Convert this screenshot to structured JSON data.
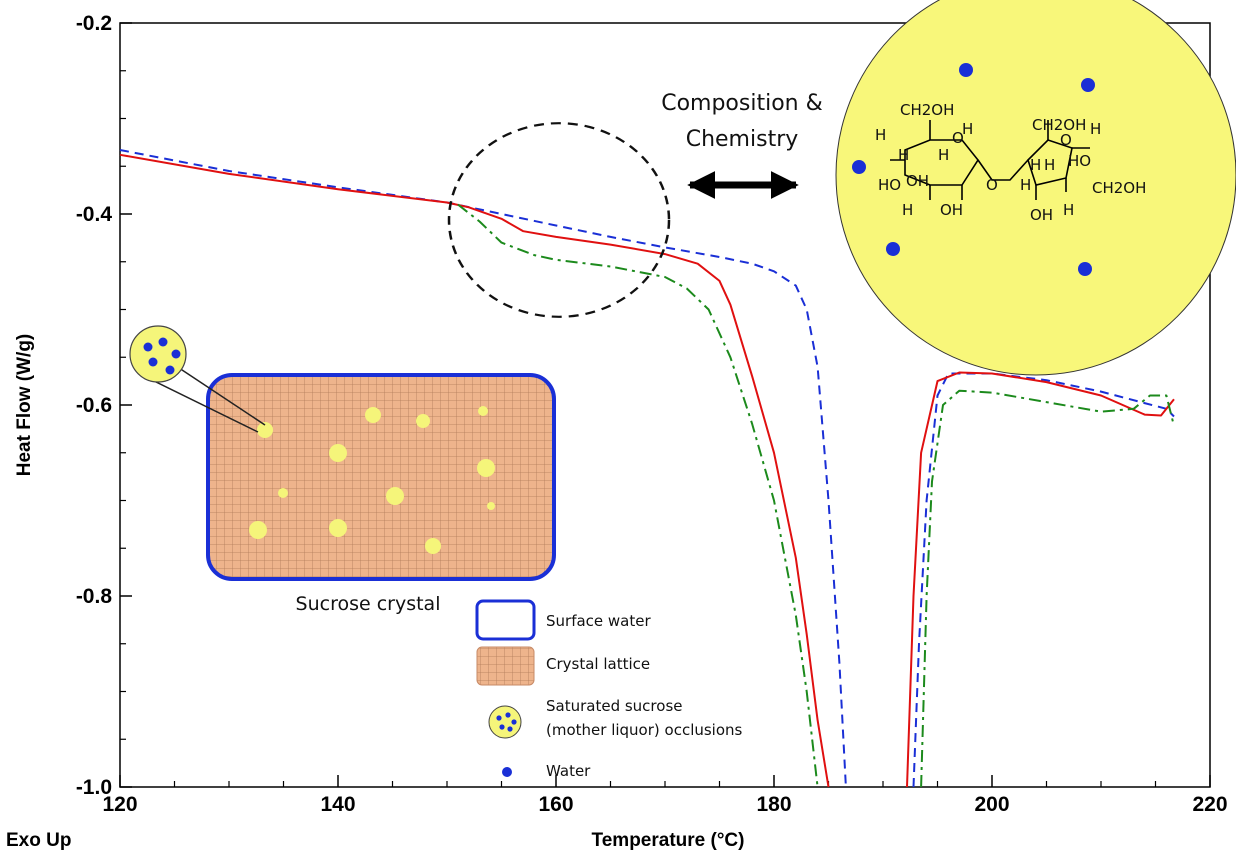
{
  "chart_data": {
    "type": "line",
    "xlabel": "Temperature (°C)",
    "ylabel": "Heat Flow (W/g)",
    "corner_label": "Exo Up",
    "xlim": [
      120,
      220
    ],
    "ylim": [
      -1.0,
      -0.2
    ],
    "xticks": [
      120,
      140,
      160,
      180,
      200,
      220
    ],
    "yticks": [
      -1.0,
      -0.8,
      -0.6,
      -0.4,
      -0.2
    ],
    "xtick_labels": [
      "120",
      "140",
      "160",
      "180",
      "200",
      "220"
    ],
    "ytick_labels": [
      "-1.0",
      "-0.8",
      "-0.6",
      "-0.4",
      "-0.2"
    ],
    "grid": false,
    "series": [
      {
        "color": "#1a2fd6",
        "dash": "dashed",
        "points": [
          [
            120,
            -0.333
          ],
          [
            130,
            -0.355
          ],
          [
            140,
            -0.372
          ],
          [
            150,
            -0.388
          ],
          [
            155,
            -0.4
          ],
          [
            160,
            -0.412
          ],
          [
            165,
            -0.424
          ],
          [
            170,
            -0.435
          ],
          [
            175,
            -0.445
          ],
          [
            178,
            -0.452
          ],
          [
            180,
            -0.46
          ],
          [
            182,
            -0.475
          ],
          [
            183,
            -0.5
          ],
          [
            184,
            -0.56
          ],
          [
            185,
            -0.7
          ],
          [
            186,
            -0.87
          ],
          [
            186.6,
            -1.0
          ]
        ],
        "points_after": [
          [
            192.8,
            -1.0
          ],
          [
            193.3,
            -0.85
          ],
          [
            194,
            -0.7
          ],
          [
            195,
            -0.59
          ],
          [
            196,
            -0.567
          ],
          [
            200,
            -0.567
          ],
          [
            205,
            -0.574
          ],
          [
            210,
            -0.586
          ],
          [
            214,
            -0.598
          ],
          [
            216,
            -0.604
          ],
          [
            216.7,
            -0.612
          ]
        ]
      },
      {
        "color": "#e01010",
        "dash": "solid",
        "points": [
          [
            120,
            -0.338
          ],
          [
            130,
            -0.358
          ],
          [
            140,
            -0.374
          ],
          [
            150,
            -0.388
          ],
          [
            152,
            -0.393
          ],
          [
            155,
            -0.405
          ],
          [
            157,
            -0.418
          ],
          [
            160,
            -0.424
          ],
          [
            165,
            -0.432
          ],
          [
            170,
            -0.442
          ],
          [
            173,
            -0.452
          ],
          [
            175,
            -0.47
          ],
          [
            176,
            -0.495
          ],
          [
            178,
            -0.57
          ],
          [
            180,
            -0.65
          ],
          [
            182,
            -0.76
          ],
          [
            183,
            -0.84
          ],
          [
            184,
            -0.93
          ],
          [
            185,
            -1.0
          ]
        ],
        "points_after": [
          [
            192.2,
            -1.0
          ],
          [
            192.8,
            -0.8
          ],
          [
            193.5,
            -0.65
          ],
          [
            195,
            -0.575
          ],
          [
            197,
            -0.566
          ],
          [
            200,
            -0.567
          ],
          [
            205,
            -0.576
          ],
          [
            210,
            -0.59
          ],
          [
            214,
            -0.61
          ],
          [
            215.5,
            -0.611
          ],
          [
            216.7,
            -0.594
          ]
        ]
      },
      {
        "color": "#1c8a1c",
        "dash": "dashdot",
        "points": [
          [
            151,
            -0.39
          ],
          [
            153,
            -0.408
          ],
          [
            155,
            -0.43
          ],
          [
            158,
            -0.443
          ],
          [
            160,
            -0.448
          ],
          [
            165,
            -0.455
          ],
          [
            170,
            -0.466
          ],
          [
            172,
            -0.478
          ],
          [
            174,
            -0.5
          ],
          [
            176,
            -0.55
          ],
          [
            178,
            -0.62
          ],
          [
            180,
            -0.7
          ],
          [
            182,
            -0.82
          ],
          [
            183,
            -0.9
          ],
          [
            184,
            -1.0
          ]
        ],
        "points_after": [
          [
            193.5,
            -1.0
          ],
          [
            194,
            -0.8
          ],
          [
            194.5,
            -0.68
          ],
          [
            195.5,
            -0.6
          ],
          [
            197,
            -0.585
          ],
          [
            200,
            -0.587
          ],
          [
            205,
            -0.597
          ],
          [
            210,
            -0.607
          ],
          [
            213,
            -0.604
          ],
          [
            214.5,
            -0.59
          ],
          [
            216,
            -0.59
          ],
          [
            216.7,
            -0.622
          ]
        ]
      }
    ],
    "annotations": {
      "composition": [
        "Composition &",
        "Chemistry"
      ],
      "sucrose_crystal": "Sucrose crystal",
      "molecule_labels": [
        "CH2OH",
        "CH2OH",
        "CH2OH",
        "H",
        "H",
        "H",
        "H",
        "H",
        "H",
        "H",
        "OH",
        "OH",
        "OH",
        "HO",
        "HO",
        "OH",
        "O",
        "O",
        "O",
        "H",
        "H",
        "H",
        "OH"
      ],
      "legend": [
        {
          "label": "Surface water",
          "icon": "blue-outline-rect"
        },
        {
          "label": "Crystal lattice",
          "icon": "grid-rect"
        },
        {
          "label": [
            "Saturated sucrose",
            "(mother liquor) occlusions"
          ],
          "icon": "occlusion-circle"
        },
        {
          "label": "Water",
          "icon": "blue-dot"
        }
      ]
    },
    "colors": {
      "surface_water": "#1a2fd6",
      "lattice": "#eeb48c",
      "occlusion": "#f5f57a",
      "water": "#1a2fd6"
    }
  }
}
